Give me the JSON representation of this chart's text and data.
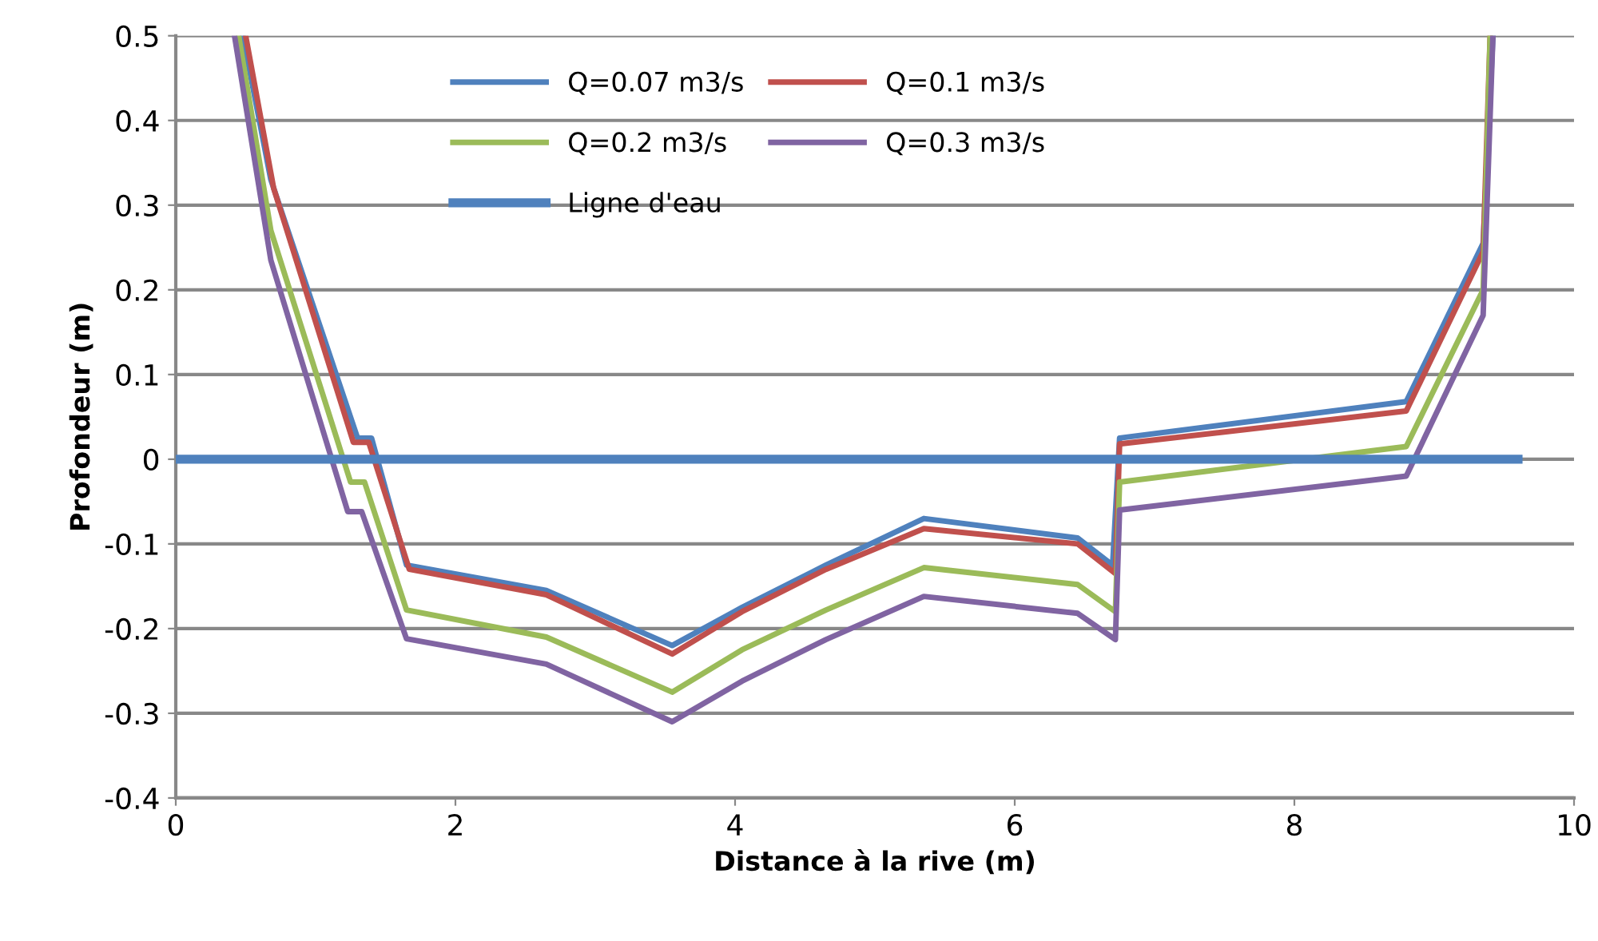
{
  "chart_data": {
    "type": "line",
    "xlabel": "Distance à la rive (m)",
    "ylabel": "Profondeur (m)",
    "xlim": [
      0,
      10
    ],
    "xticks": [
      0,
      2,
      4,
      6,
      8,
      10
    ],
    "ylim": [
      -0.4,
      0.5
    ],
    "yticks": [
      -0.4,
      -0.3,
      -0.2,
      -0.1,
      0,
      0.1,
      0.2,
      0.3,
      0.4,
      0.5
    ],
    "grid": "y",
    "legend": "top",
    "marker": "none",
    "line_style": "solid",
    "series": [
      {
        "name": "Q=0.07 m3/s",
        "color": "#4f81bd",
        "x": [
          0.48,
          0.68,
          1.3,
          1.4,
          1.65,
          2.65,
          3.55,
          4.05,
          4.65,
          5.35,
          6.45,
          6.7,
          6.75,
          8.8,
          9.35,
          9.42
        ],
        "values": [
          0.5,
          0.33,
          0.025,
          0.025,
          -0.125,
          -0.155,
          -0.22,
          -0.175,
          -0.125,
          -0.07,
          -0.093,
          -0.125,
          0.025,
          0.068,
          0.255,
          0.5
        ]
      },
      {
        "name": "Q=0.1 m3/s",
        "color": "#c0504d",
        "x": [
          0.5,
          0.7,
          1.27,
          1.38,
          1.67,
          2.65,
          3.55,
          4.05,
          4.65,
          5.35,
          6.45,
          6.72,
          6.75,
          8.8,
          9.35,
          9.4
        ],
        "values": [
          0.5,
          0.32,
          0.02,
          0.02,
          -0.13,
          -0.16,
          -0.23,
          -0.18,
          -0.13,
          -0.082,
          -0.1,
          -0.135,
          0.018,
          0.057,
          0.245,
          0.5
        ]
      },
      {
        "name": "Q=0.2 m3/s",
        "color": "#9bbb59",
        "x": [
          0.45,
          0.68,
          1.25,
          1.35,
          1.65,
          2.65,
          3.55,
          4.05,
          4.65,
          5.35,
          6.45,
          6.72,
          6.75,
          8.8,
          9.35,
          9.4
        ],
        "values": [
          0.5,
          0.27,
          -0.027,
          -0.027,
          -0.178,
          -0.21,
          -0.275,
          -0.225,
          -0.178,
          -0.128,
          -0.148,
          -0.18,
          -0.027,
          0.015,
          0.2,
          0.5
        ]
      },
      {
        "name": "Q=0.3 m3/s",
        "color": "#8064a2",
        "x": [
          0.42,
          0.68,
          1.23,
          1.33,
          1.65,
          2.65,
          3.55,
          4.05,
          4.65,
          5.35,
          6.45,
          6.72,
          6.75,
          8.8,
          9.35,
          9.42
        ],
        "values": [
          0.5,
          0.235,
          -0.062,
          -0.062,
          -0.212,
          -0.242,
          -0.31,
          -0.262,
          -0.213,
          -0.162,
          -0.182,
          -0.213,
          -0.06,
          -0.02,
          0.17,
          0.5
        ]
      },
      {
        "name": "Ligne d'eau",
        "color": "#4f81bd",
        "x": [
          0,
          9.6
        ],
        "values": [
          0,
          0
        ]
      }
    ]
  }
}
